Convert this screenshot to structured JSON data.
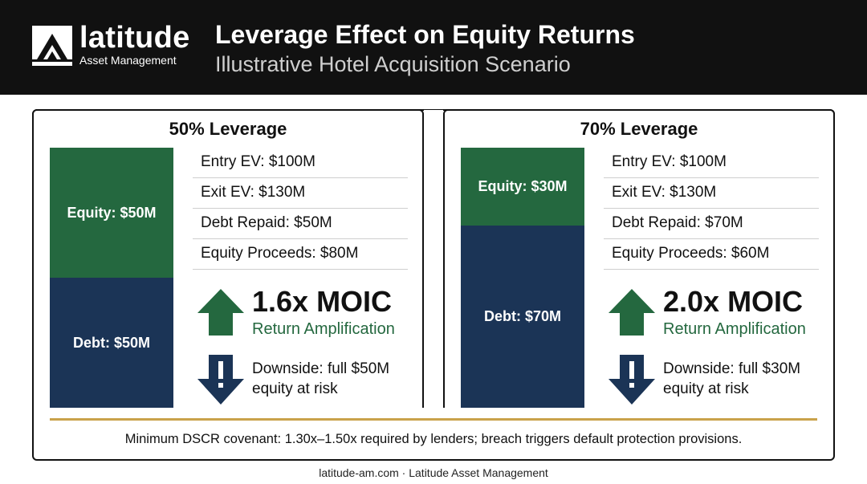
{
  "header": {
    "logo_word": "latitude",
    "logo_sub": "Asset Management",
    "title": "Leverage Effect on Equity Returns",
    "subtitle": "Illustrative Hotel Acquisition Scenario"
  },
  "scenarios": [
    {
      "title": "50% Leverage",
      "equity_value": 50,
      "debt_value": 50,
      "equity_label": "Equity: $50M",
      "debt_label": "Debt: $50M",
      "rows": [
        "Entry EV: $100M",
        "Exit EV: $130M",
        "Debt Repaid: $50M",
        "Equity Proceeds: $80M"
      ],
      "moic": "1.6x MOIC",
      "amplification": "Return Amplification",
      "downside_line1": "Downside: full $50M",
      "downside_line2": "equity at risk"
    },
    {
      "title": "70% Leverage",
      "equity_value": 30,
      "debt_value": 70,
      "equity_label": "Equity: $30M",
      "debt_label": "Debt: $70M",
      "rows": [
        "Entry EV: $100M",
        "Exit EV: $130M",
        "Debt Repaid: $70M",
        "Equity Proceeds: $60M"
      ],
      "moic": "2.0x MOIC",
      "amplification": "Return Amplification",
      "downside_line1": "Downside: full $30M",
      "downside_line2": "equity at risk"
    }
  ],
  "note": "Minimum DSCR covenant: 1.30x–1.50x required by lenders; breach triggers default protection provisions.",
  "footer": "latitude-am.com · Latitude Asset Management",
  "colors": {
    "equity": "#24683f",
    "debt": "#1b3456",
    "accent": "#c9a24a",
    "header_bg": "#111111"
  },
  "icons": {
    "logo": "mountain-logo-icon",
    "up": "up-arrow-icon",
    "down": "warning-down-arrow-icon"
  }
}
